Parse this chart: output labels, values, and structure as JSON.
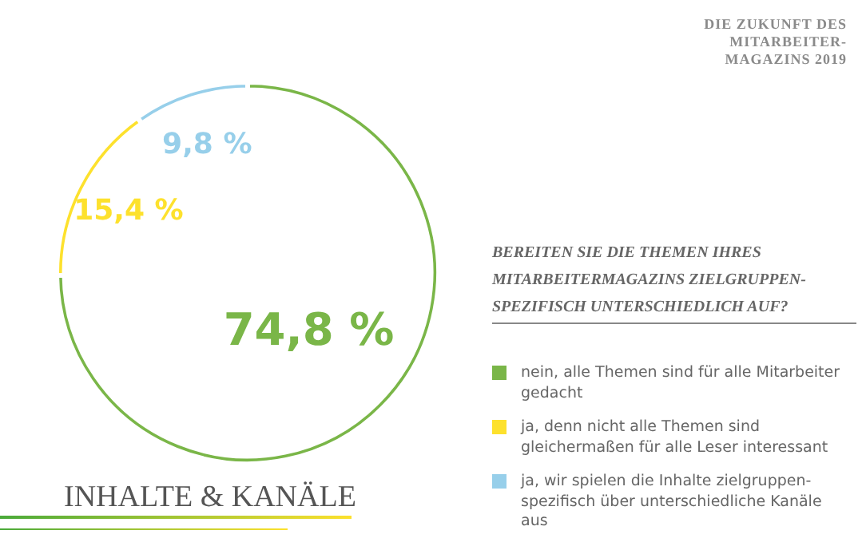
{
  "chart_data": {
    "type": "donut",
    "title": "BEREITEN SIE DIE THEMEN IHRES MITARBEITERMAGAZINS ZIELGRUPPEN-SPEZIFISCH UNTERSCHIEDLICH AUF?",
    "subtitle": "INHALTE & KANÄLE",
    "annotations": [
      "DIE ZUKUNFT DES MITARBEITER-MAGAZINS 2019"
    ],
    "categories": [
      "nein, alle Themen sind für alle Mitarbeiter gedacht",
      "ja, denn nicht alle Themen sind gleichermaßen für alle Leser interessant",
      "ja, wir spielen die Inhalte zielgruppen-spezifisch über unterschiedliche Kanäle aus"
    ],
    "values": [
      74.8,
      15.4,
      9.8
    ],
    "colors": [
      "#7ab648",
      "#fde12d",
      "#97cfea"
    ],
    "value_labels": [
      "74,8 %",
      "15,4 %",
      "9,8 %"
    ],
    "legend": "right"
  }
}
